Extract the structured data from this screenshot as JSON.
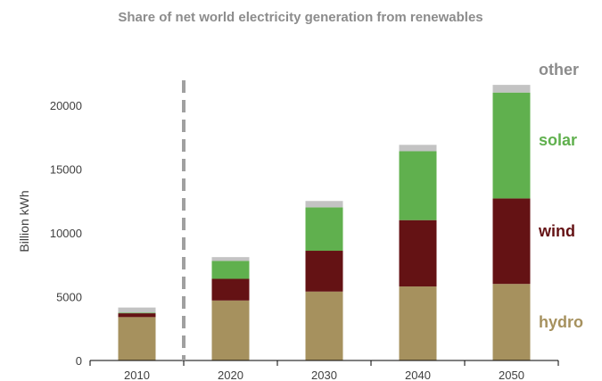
{
  "chart_data": {
    "type": "bar",
    "stacked": true,
    "title": "Share of net world electricity generation from renewables",
    "xlabel": "",
    "ylabel": "Billion kWh",
    "ylim": [
      0,
      22000
    ],
    "yticks": [
      0,
      5000,
      10000,
      15000,
      20000
    ],
    "categories": [
      "2010",
      "2020",
      "2030",
      "2040",
      "2050"
    ],
    "divider_after_category": "2010",
    "grid": false,
    "series": [
      {
        "name": "hydro",
        "color": "#a6915e",
        "values": [
          3400,
          4700,
          5400,
          5800,
          6000
        ]
      },
      {
        "name": "wind",
        "color": "#641214",
        "values": [
          300,
          1700,
          3200,
          5200,
          6700
        ]
      },
      {
        "name": "solar",
        "color": "#60b04e",
        "values": [
          50,
          1400,
          3400,
          5400,
          8300
        ]
      },
      {
        "name": "other",
        "color": "#c3c3c3",
        "values": [
          400,
          300,
          500,
          500,
          600
        ]
      }
    ],
    "legend": "labels-right"
  }
}
